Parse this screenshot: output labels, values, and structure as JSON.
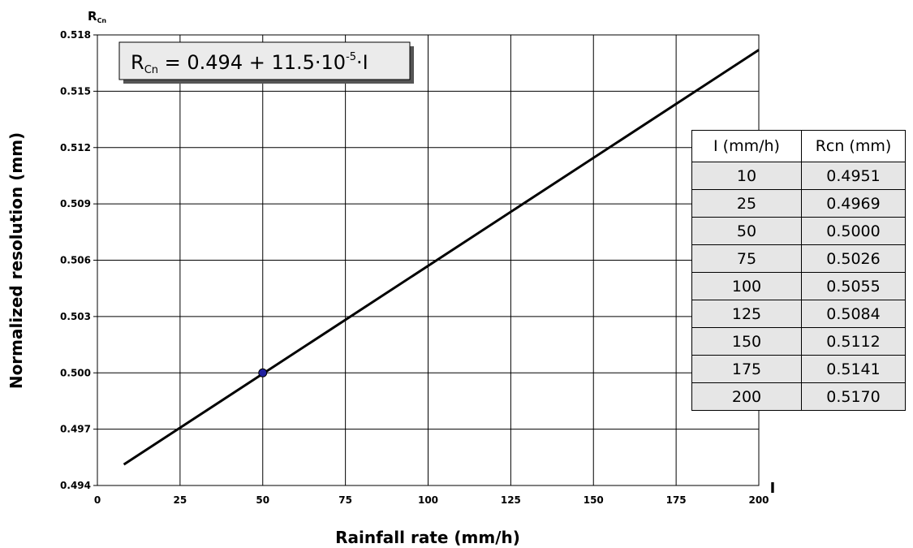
{
  "chart_data": {
    "type": "line",
    "corner_x_label": "I",
    "corner_y_label": "R",
    "corner_y_sub": "Cn",
    "xlabel": "Rainfall rate (mm/h)",
    "ylabel": "Normalized resolution (mm)",
    "xlim": [
      0,
      200
    ],
    "ylim": [
      0.494,
      0.518
    ],
    "x_ticks": [
      "0",
      "25",
      "50",
      "75",
      "100",
      "125",
      "150",
      "175",
      "200"
    ],
    "x_tick_values": [
      0,
      25,
      50,
      75,
      100,
      125,
      150,
      175,
      200
    ],
    "y_ticks": [
      "0.494",
      "0.497",
      "0.500",
      "0.503",
      "0.506",
      "0.509",
      "0.512",
      "0.515",
      "0.518"
    ],
    "y_tick_values": [
      0.494,
      0.497,
      0.5,
      0.503,
      0.506,
      0.509,
      0.512,
      0.515,
      0.518
    ],
    "grid": true,
    "line": {
      "x": [
        8,
        200
      ],
      "y": [
        0.49512,
        0.5172
      ],
      "color": "#000000"
    },
    "marker": {
      "x": 50,
      "y": 0.5,
      "color": "#1f1f9e"
    },
    "equation": {
      "prefix": "R",
      "sub": "Cn",
      "mid": " = 0.494 + 11.5·10",
      "sup": "-5",
      "suffix": "·I"
    },
    "table": {
      "header": [
        "I (mm/h)",
        "Rcn (mm)"
      ],
      "rows": [
        [
          "10",
          "0.4951"
        ],
        [
          "25",
          "0.4969"
        ],
        [
          "50",
          "0.5000"
        ],
        [
          "75",
          "0.5026"
        ],
        [
          "100",
          "0.5055"
        ],
        [
          "125",
          "0.5084"
        ],
        [
          "150",
          "0.5112"
        ],
        [
          "175",
          "0.5141"
        ],
        [
          "200",
          "0.5170"
        ]
      ]
    }
  }
}
